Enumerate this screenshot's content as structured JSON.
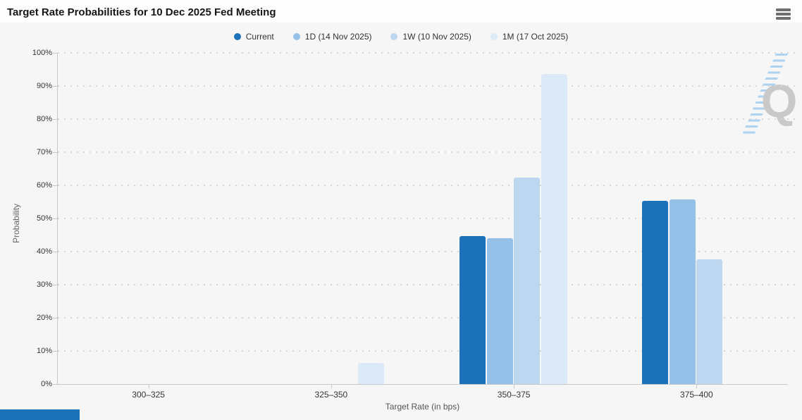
{
  "header": {
    "title": "Target Rate Probabilities for 10 Dec 2025 Fed Meeting",
    "menu_icon": "hamburger-icon"
  },
  "watermark": {
    "letter": "Q"
  },
  "accent_blue": "#1c72b9",
  "chart_data": {
    "type": "bar",
    "title": "Target Rate Probabilities for 10 Dec 2025 Fed Meeting",
    "categories": [
      "300–325",
      "325–350",
      "350–375",
      "375–400"
    ],
    "series": [
      {
        "name": "Current",
        "color": "#1c72b9",
        "values": [
          0,
          0,
          44.7,
          55.3
        ]
      },
      {
        "name": "1D (14 Nov 2025)",
        "color": "#95c1e8",
        "values": [
          0,
          0,
          44.1,
          55.7
        ]
      },
      {
        "name": "1W (10 Nov 2025)",
        "color": "#bcd7ef",
        "values": [
          0,
          0,
          62.3,
          37.7
        ]
      },
      {
        "name": "1M (17 Oct 2025)",
        "color": "#dceaf8",
        "values": [
          0,
          6.3,
          93.7,
          0
        ]
      }
    ],
    "xlabel": "Target Rate (in bps)",
    "ylabel": "Probability",
    "ylim": [
      0,
      100
    ],
    "ytick_step": 10,
    "yticks": [
      "0%",
      "10%",
      "20%",
      "30%",
      "40%",
      "50%",
      "60%",
      "70%",
      "80%",
      "90%",
      "100%"
    ],
    "grid": "dotted-horizontal",
    "legend_position": "top-center"
  }
}
